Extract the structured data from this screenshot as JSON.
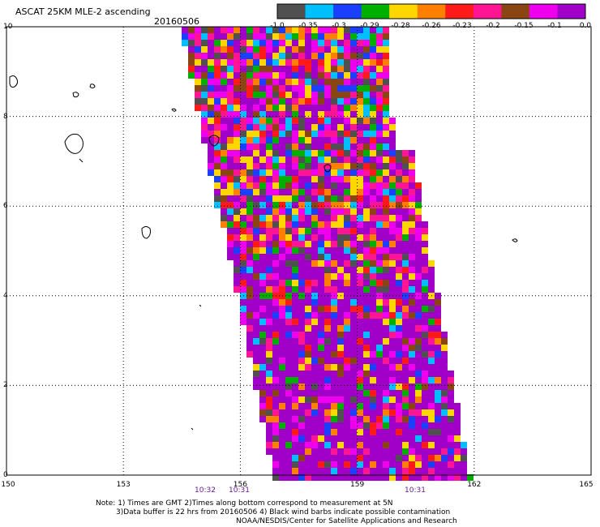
{
  "map": {
    "title": "ASCAT 25KM MLE-2 ascending",
    "date": "20160506",
    "lat_ticks": [
      "10",
      "8",
      "6",
      "4",
      "2",
      "0"
    ],
    "lon_ticks": [
      "150",
      "153",
      "156",
      "159",
      "162",
      "165"
    ],
    "pass_times": [
      "10:32",
      "10:31",
      "10:31"
    ],
    "notes": [
      "Note: 1) Times are GMT 2)Times along bottom correspond to measurement at 5N",
      "3)Data buffer is 22 hrs from 20160506 4) Black wind barbs indicate possible contamination",
      "NOAA/NESDIS/Center for Satellite Applications and Research"
    ]
  },
  "colorbar": {
    "labels": [
      "-1.0",
      "-0.35",
      "-0.3",
      "-0.29",
      "-0.28",
      "-0.26",
      "-0.23",
      "-0.2",
      "-0.15",
      "-0.1",
      "0.0"
    ],
    "colors": [
      "#505050",
      "#00bfff",
      "#1a3fff",
      "#00b000",
      "#ffd700",
      "#ff8000",
      "#ff1a1a",
      "#ff1493",
      "#8b4513",
      "#ee00ee",
      "#a000c8"
    ]
  }
}
